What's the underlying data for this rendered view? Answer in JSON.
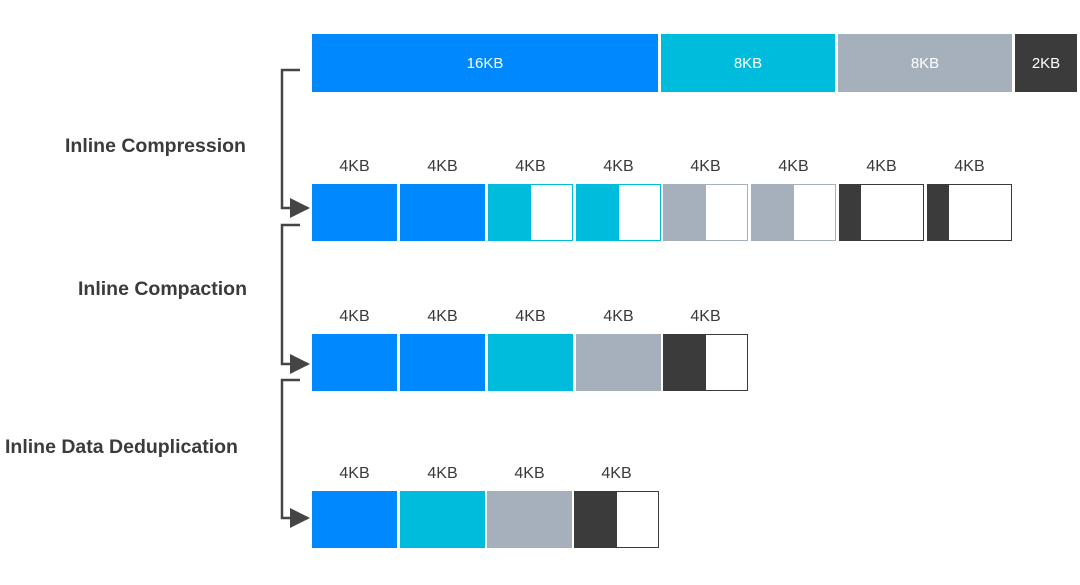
{
  "colors": {
    "blue": "#0088ff",
    "cyan": "#00bcdc",
    "gray": "#a5b0bc",
    "dark": "#3b3b3b",
    "connector": "#454545"
  },
  "source_row": [
    {
      "label": "16KB",
      "color": "blue"
    },
    {
      "label": "8KB",
      "color": "cyan"
    },
    {
      "label": "8KB",
      "color": "gray"
    },
    {
      "label": "2KB",
      "color": "dark"
    }
  ],
  "steps": [
    {
      "label": "Inline Compression"
    },
    {
      "label": "Inline Compaction"
    },
    {
      "label": "Inline Data Deduplication"
    }
  ],
  "rows": [
    {
      "blocks": [
        {
          "label": "4KB",
          "color": "blue",
          "fill": 1.0
        },
        {
          "label": "4KB",
          "color": "blue",
          "fill": 1.0
        },
        {
          "label": "4KB",
          "color": "cyan",
          "fill": 0.5
        },
        {
          "label": "4KB",
          "color": "cyan",
          "fill": 0.5
        },
        {
          "label": "4KB",
          "color": "gray",
          "fill": 0.5
        },
        {
          "label": "4KB",
          "color": "gray",
          "fill": 0.5
        },
        {
          "label": "4KB",
          "color": "dark",
          "fill": 0.25
        },
        {
          "label": "4KB",
          "color": "dark",
          "fill": 0.25
        }
      ]
    },
    {
      "blocks": [
        {
          "label": "4KB",
          "color": "blue",
          "fill": 1.0
        },
        {
          "label": "4KB",
          "color": "blue",
          "fill": 1.0
        },
        {
          "label": "4KB",
          "color": "cyan",
          "fill": 1.0
        },
        {
          "label": "4KB",
          "color": "gray",
          "fill": 1.0
        },
        {
          "label": "4KB",
          "color": "dark",
          "fill": 0.5
        }
      ]
    },
    {
      "blocks": [
        {
          "label": "4KB",
          "color": "blue",
          "fill": 1.0
        },
        {
          "label": "4KB",
          "color": "cyan",
          "fill": 1.0
        },
        {
          "label": "4KB",
          "color": "gray",
          "fill": 1.0
        },
        {
          "label": "4KB",
          "color": "dark",
          "fill": 0.5
        }
      ]
    }
  ]
}
